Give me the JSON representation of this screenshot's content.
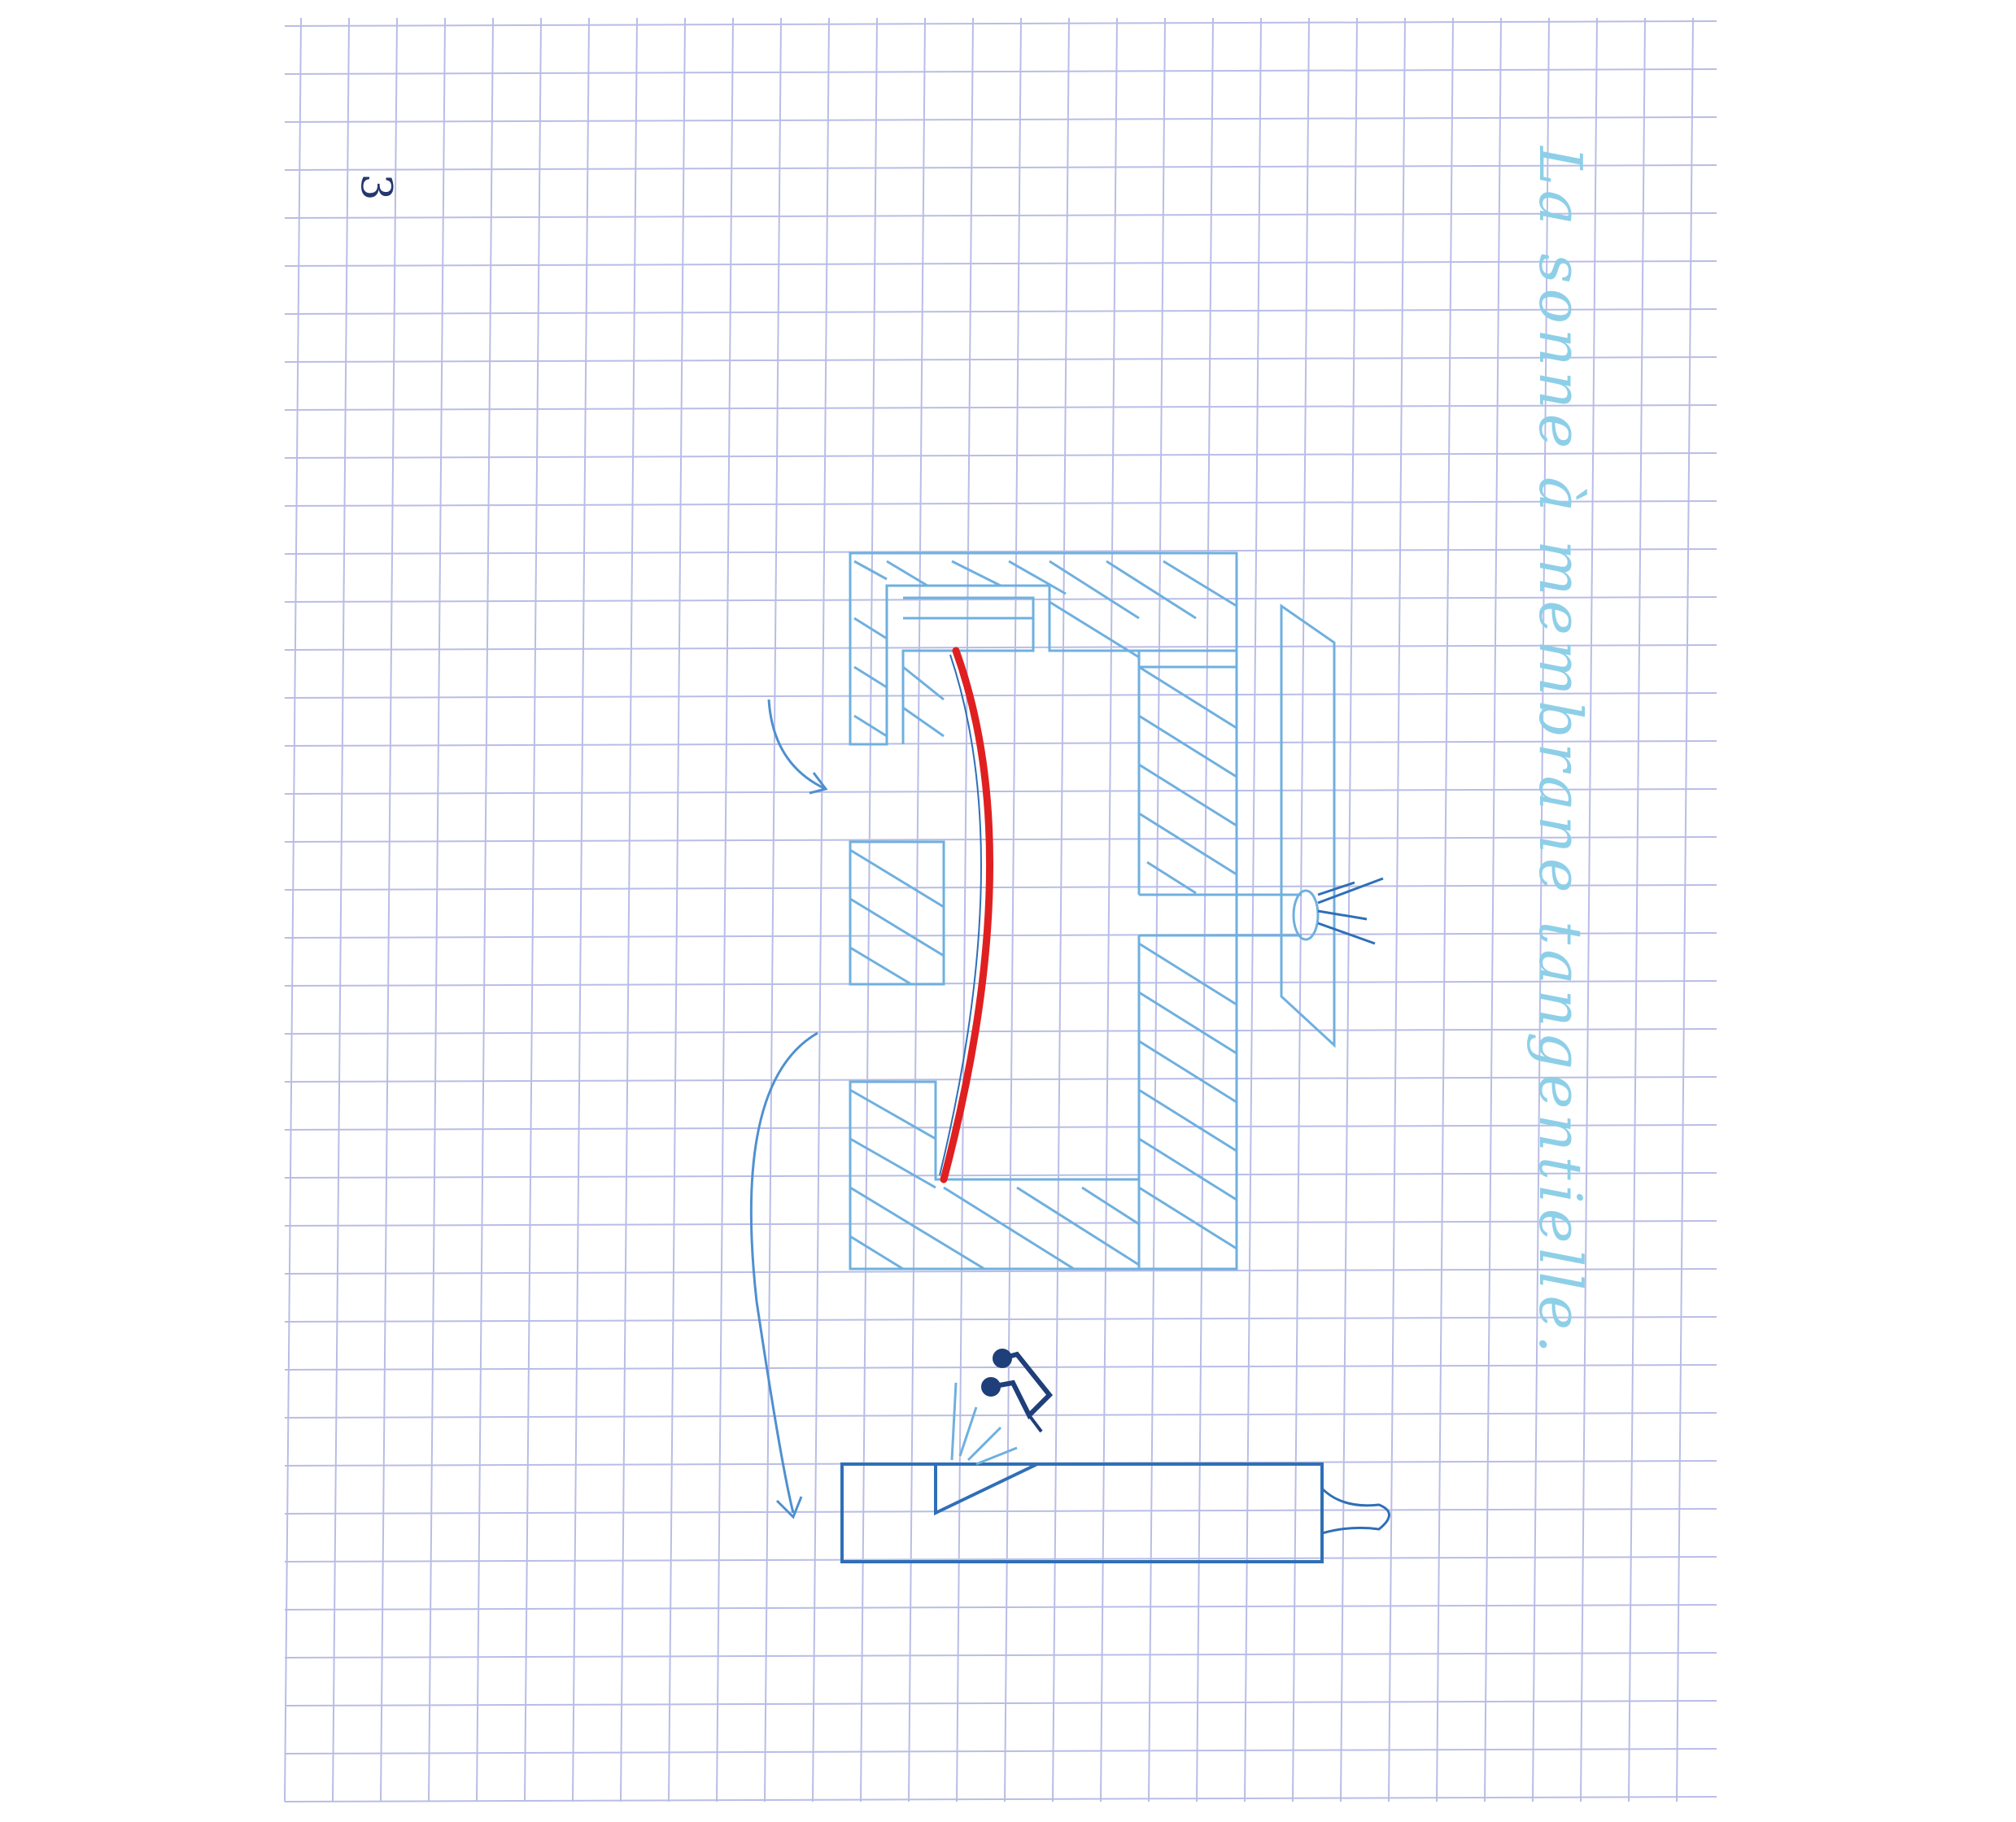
{
  "page": {
    "number": "3",
    "title": "La sonne à membrane tangentielle."
  },
  "colors": {
    "paper": "#ffffff",
    "grid": "#b9bde6",
    "ink_light": "#6fb0df",
    "ink_dark": "#2f6fb6",
    "ink_navy": "#1f3f7a",
    "membrane": "#e02020",
    "title_ink": "#8ecfe8"
  },
  "icons": {
    "music_note": "music-note-icon",
    "flame": "flame-icon"
  }
}
